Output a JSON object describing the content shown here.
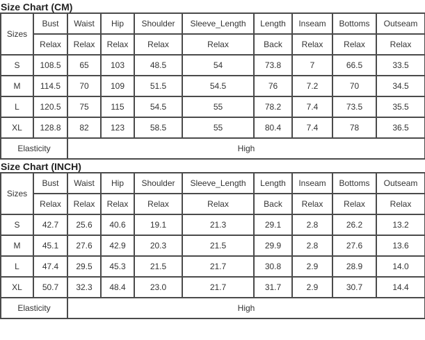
{
  "tables": [
    {
      "title": "Size Chart (CM)",
      "sizes_label": "Sizes",
      "columns": [
        "Bust",
        "Waist",
        "Hip",
        "Shoulder",
        "Sleeve_Length",
        "Length",
        "Inseam",
        "Bottoms",
        "Outseam"
      ],
      "fit": [
        "Relax",
        "Relax",
        "Relax",
        "Relax",
        "Relax",
        "Back",
        "Relax",
        "Relax",
        "Relax"
      ],
      "rows": [
        {
          "size": "S",
          "values": [
            "108.5",
            "65",
            "103",
            "48.5",
            "54",
            "73.8",
            "7",
            "66.5",
            "33.5"
          ]
        },
        {
          "size": "M",
          "values": [
            "114.5",
            "70",
            "109",
            "51.5",
            "54.5",
            "76",
            "7.2",
            "70",
            "34.5"
          ]
        },
        {
          "size": "L",
          "values": [
            "120.5",
            "75",
            "115",
            "54.5",
            "55",
            "78.2",
            "7.4",
            "73.5",
            "35.5"
          ]
        },
        {
          "size": "XL",
          "values": [
            "128.8",
            "82",
            "123",
            "58.5",
            "55",
            "80.4",
            "7.4",
            "78",
            "36.5"
          ]
        }
      ],
      "elasticity_label": "Elasticity",
      "elasticity_value": "High"
    },
    {
      "title": "Size Chart (INCH)",
      "sizes_label": "Sizes",
      "columns": [
        "Bust",
        "Waist",
        "Hip",
        "Shoulder",
        "Sleeve_Length",
        "Length",
        "Inseam",
        "Bottoms",
        "Outseam"
      ],
      "fit": [
        "Relax",
        "Relax",
        "Relax",
        "Relax",
        "Relax",
        "Back",
        "Relax",
        "Relax",
        "Relax"
      ],
      "rows": [
        {
          "size": "S",
          "values": [
            "42.7",
            "25.6",
            "40.6",
            "19.1",
            "21.3",
            "29.1",
            "2.8",
            "26.2",
            "13.2"
          ]
        },
        {
          "size": "M",
          "values": [
            "45.1",
            "27.6",
            "42.9",
            "20.3",
            "21.5",
            "29.9",
            "2.8",
            "27.6",
            "13.6"
          ]
        },
        {
          "size": "L",
          "values": [
            "47.4",
            "29.5",
            "45.3",
            "21.5",
            "21.7",
            "30.8",
            "2.9",
            "28.9",
            "14.0"
          ]
        },
        {
          "size": "XL",
          "values": [
            "50.7",
            "32.3",
            "48.4",
            "23.0",
            "21.7",
            "31.7",
            "2.9",
            "30.7",
            "14.4"
          ]
        }
      ],
      "elasticity_label": "Elasticity",
      "elasticity_value": "High"
    }
  ]
}
